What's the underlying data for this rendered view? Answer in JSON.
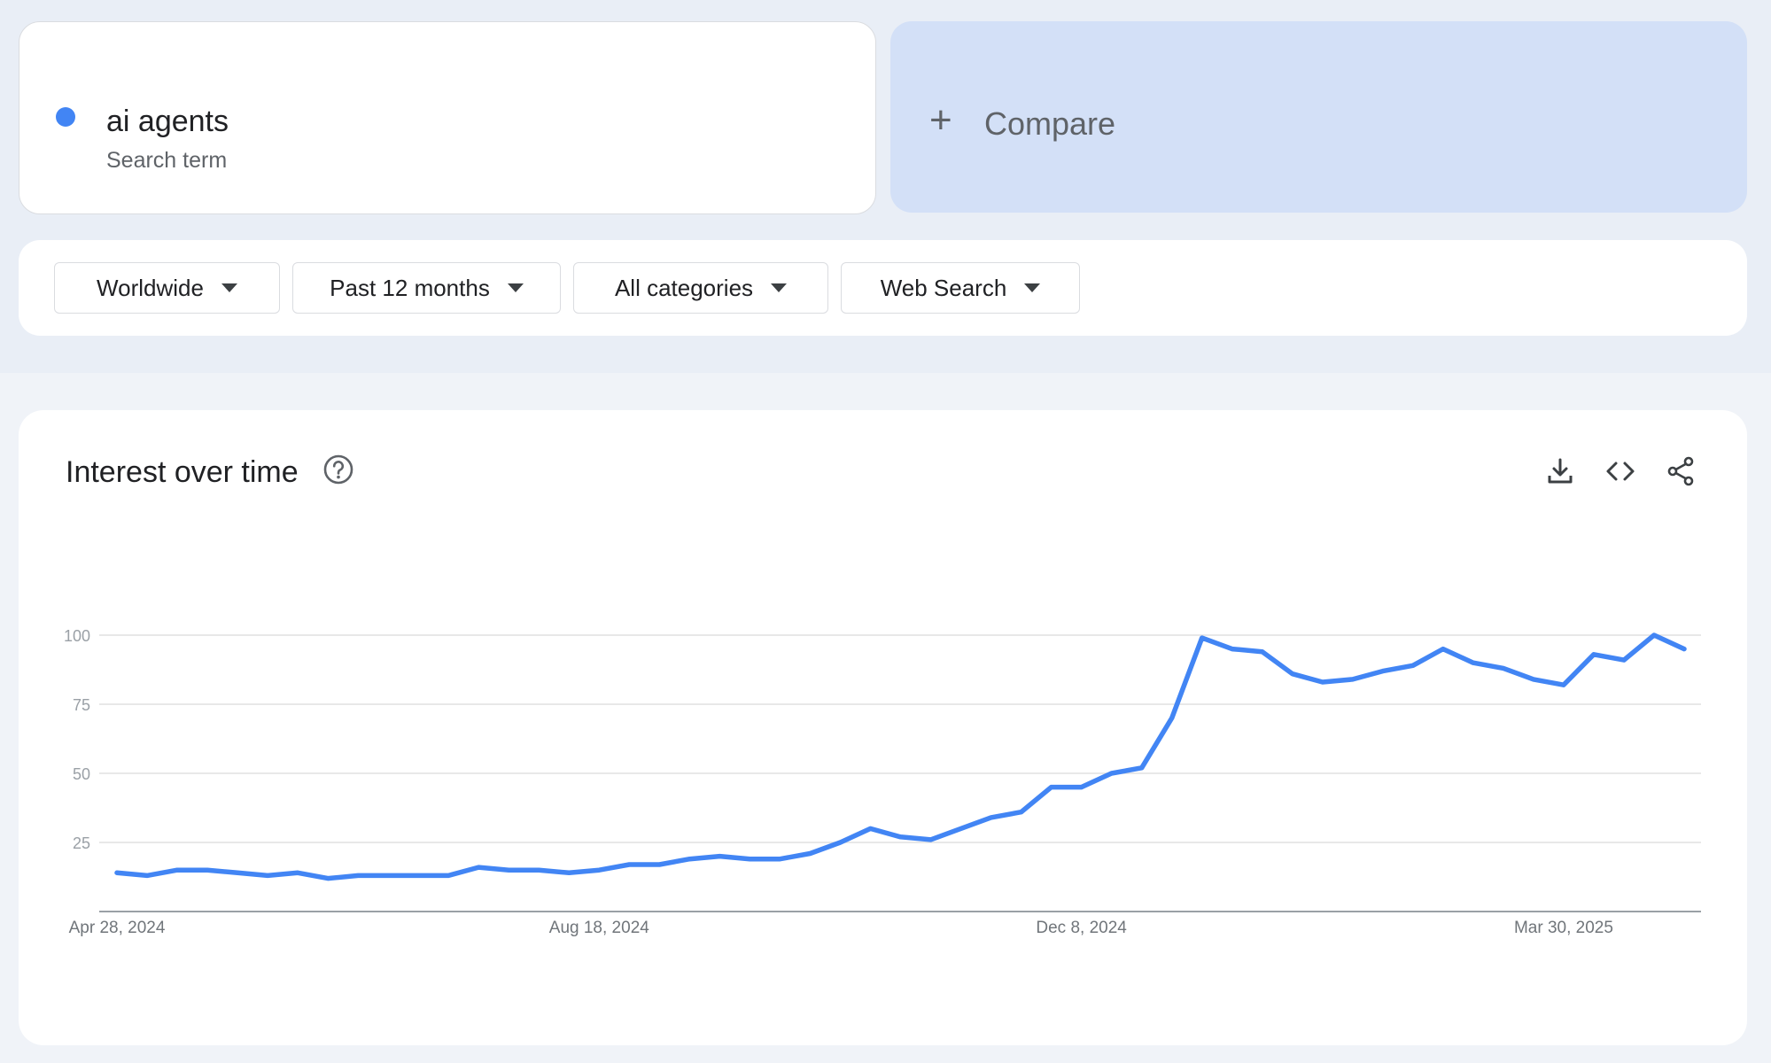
{
  "search_term": {
    "name": "ai agents",
    "type_label": "Search term",
    "color": "#4285f4"
  },
  "compare": {
    "plus": "+",
    "label": "Compare"
  },
  "filters": [
    {
      "label": "Worldwide"
    },
    {
      "label": "Past 12 months"
    },
    {
      "label": "All categories"
    },
    {
      "label": "Web Search"
    }
  ],
  "chart_section": {
    "title": "Interest over time",
    "icons": [
      "help-icon",
      "download-icon",
      "embed-code-icon",
      "share-icon"
    ]
  },
  "chart_data": {
    "type": "line",
    "title": "Interest over time",
    "xlabel": "",
    "ylabel": "",
    "ylim": [
      0,
      100
    ],
    "y_ticks": [
      25,
      50,
      75,
      100
    ],
    "x_tick_labels": [
      "Apr 28, 2024",
      "Aug 18, 2024",
      "Dec 8, 2024",
      "Mar 30, 2025"
    ],
    "x_tick_week_index": [
      0,
      16,
      32,
      48
    ],
    "grid": true,
    "line_color": "#4285f4",
    "series": [
      {
        "values": [
          14,
          13,
          15,
          15,
          14,
          13,
          14,
          12,
          13,
          13,
          13,
          13,
          16,
          15,
          15,
          14,
          15,
          17,
          17,
          19,
          20,
          19,
          19,
          21,
          25,
          30,
          27,
          26,
          30,
          34,
          36,
          45,
          45,
          50,
          52,
          70,
          99,
          95,
          94,
          86,
          83,
          84,
          87,
          89,
          95,
          90,
          88,
          84,
          82,
          93,
          91,
          100,
          95
        ]
      }
    ]
  }
}
